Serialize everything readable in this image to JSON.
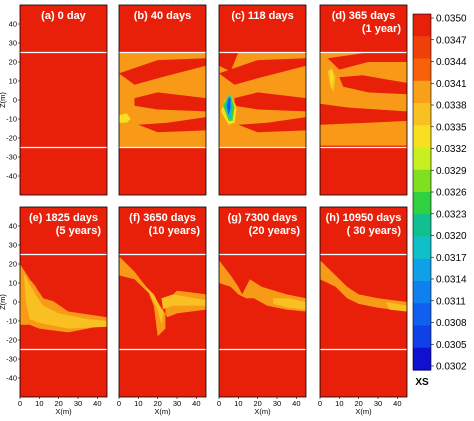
{
  "chart_data": [
    {
      "type": "heatmap",
      "title": "(a) 0 day",
      "subtitle": "",
      "xlabel": "",
      "ylabel": "Z(m)",
      "xlim": [
        0,
        45
      ],
      "ylim": [
        -50,
        50
      ],
      "xticks": [],
      "yticks": [
        -40,
        -30,
        -20,
        -10,
        0,
        10,
        20,
        30,
        40
      ],
      "layer_boundaries": [
        25,
        -25
      ],
      "plume_stage": 0
    },
    {
      "type": "heatmap",
      "title": "(b) 40 days",
      "subtitle": "",
      "xlabel": "",
      "ylabel": "",
      "xlim": [
        0,
        45
      ],
      "ylim": [
        -50,
        50
      ],
      "xticks": [],
      "yticks": [],
      "layer_boundaries": [
        25,
        -25
      ],
      "plume_stage": 1
    },
    {
      "type": "heatmap",
      "title": "(c) 118 days",
      "subtitle": "",
      "xlabel": "",
      "ylabel": "",
      "xlim": [
        0,
        45
      ],
      "ylim": [
        -50,
        50
      ],
      "xticks": [],
      "yticks": [],
      "layer_boundaries": [
        25,
        -25
      ],
      "plume_stage": 2
    },
    {
      "type": "heatmap",
      "title": "(d) 365 days",
      "subtitle": "(1 year)",
      "xlabel": "",
      "ylabel": "",
      "xlim": [
        0,
        45
      ],
      "ylim": [
        -50,
        50
      ],
      "xticks": [],
      "yticks": [],
      "layer_boundaries": [
        25,
        -25
      ],
      "plume_stage": 3
    },
    {
      "type": "heatmap",
      "title": "(e) 1825 days",
      "subtitle": "(5 years)",
      "xlabel": "X(m)",
      "ylabel": "Z(m)",
      "xlim": [
        0,
        45
      ],
      "ylim": [
        -50,
        50
      ],
      "xticks": [
        0,
        10,
        20,
        30,
        40
      ],
      "yticks": [
        -40,
        -30,
        -20,
        -10,
        0,
        10,
        20,
        30,
        40
      ],
      "layer_boundaries": [
        25,
        -25
      ],
      "plume_stage": 4
    },
    {
      "type": "heatmap",
      "title": "(f) 3650 days",
      "subtitle": "(10 years)",
      "xlabel": "X(m)",
      "ylabel": "",
      "xlim": [
        0,
        45
      ],
      "ylim": [
        -50,
        50
      ],
      "xticks": [
        0,
        10,
        20,
        30,
        40
      ],
      "yticks": [],
      "layer_boundaries": [
        25,
        -25
      ],
      "plume_stage": 5
    },
    {
      "type": "heatmap",
      "title": "(g) 7300 days",
      "subtitle": "(20 years)",
      "xlabel": "X(m)",
      "ylabel": "",
      "xlim": [
        0,
        45
      ],
      "ylim": [
        -50,
        50
      ],
      "xticks": [
        0,
        10,
        20,
        30,
        40
      ],
      "yticks": [],
      "layer_boundaries": [
        25,
        -25
      ],
      "plume_stage": 6
    },
    {
      "type": "heatmap",
      "title": "(h) 10950 days",
      "subtitle": "( 30 years)",
      "xlabel": "X(m)",
      "ylabel": "",
      "xlim": [
        0,
        45
      ],
      "ylim": [
        -50,
        50
      ],
      "xticks": [
        0,
        10,
        20,
        30,
        40
      ],
      "yticks": [],
      "layer_boundaries": [
        25,
        -25
      ],
      "plume_stage": 7
    }
  ],
  "colorbar": {
    "title": "XS",
    "labels": [
      "0.0350",
      "0.0347",
      "0.0344",
      "0.0341",
      "0.0338",
      "0.0335",
      "0.0332",
      "0.0329",
      "0.0326",
      "0.0323",
      "0.0320",
      "0.0317",
      "0.0314",
      "0.0311",
      "0.0308",
      "0.0305",
      "0.0302"
    ],
    "colors": [
      "#e8200a",
      "#f0400a",
      "#f8600a",
      "#f8a01a",
      "#f8c020",
      "#f8e020",
      "#c8f020",
      "#80e020",
      "#30d040",
      "#10c090",
      "#10c0c8",
      "#10a0e8",
      "#1080f0",
      "#1060f0",
      "#1040e8",
      "#1010d0"
    ]
  },
  "colors": {
    "background": "#e8200a",
    "orange": "#f89a18",
    "light_orange": "#f8c020",
    "yellow": "#f8e020",
    "green": "#40d040",
    "cyan": "#10c0c8",
    "blue": "#1060f0",
    "boundary": "#ffffff"
  }
}
